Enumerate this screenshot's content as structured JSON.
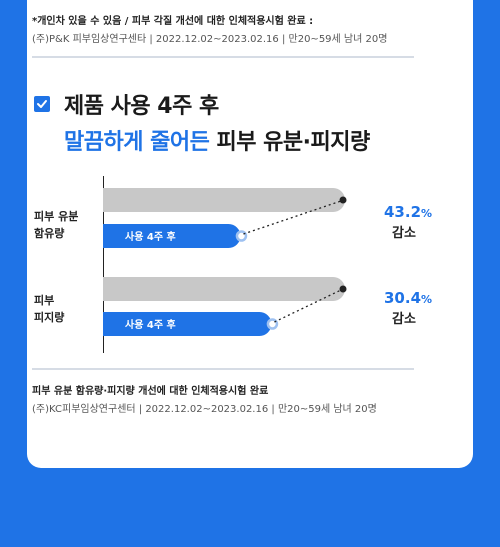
{
  "notes": {
    "top_line1": "*개인차 있을 수 있음 / 피부 각질 개선에 대한 인체적용시험 완료 :",
    "top_line2": "(주)P&K 피부임상연구센타  |  2022.12.02~2023.02.16  |  만20~59세 남녀 20명",
    "bottom_line1": "피부 유분 함유량·피지량 개선에 대한 인체적용시험 완료",
    "bottom_line2": "(주)KC피부임상연구센터  |  2022.12.02~2023.02.16  |  만20~59세 남녀 20명"
  },
  "headline": {
    "line1": "제품 사용 4주 후",
    "line2_highlight": "말끔하게 줄어든",
    "line2_rest": " 피부 유분·피지량"
  },
  "colors": {
    "accent": "#1f73e6",
    "baseline_bar": "#c8c8c8",
    "background": "#1f73e6"
  },
  "chart_data": {
    "type": "bar",
    "title": "",
    "categories": [
      "피부 유분 함유량",
      "피부 피지량"
    ],
    "row_labels": [
      [
        "피부 유분",
        "함유량"
      ],
      [
        "피부",
        "피지량"
      ]
    ],
    "series": [
      {
        "label": "사용 4주 후",
        "values": [
          56.8,
          69.6
        ]
      }
    ],
    "baseline_values": [
      100,
      100
    ],
    "reduction_pct": [
      43.2,
      30.4
    ],
    "reduction_display": [
      "43.2",
      "30.4"
    ],
    "percent_sign": "%",
    "reduction_label": "감소",
    "ylim": [
      0,
      100
    ]
  }
}
